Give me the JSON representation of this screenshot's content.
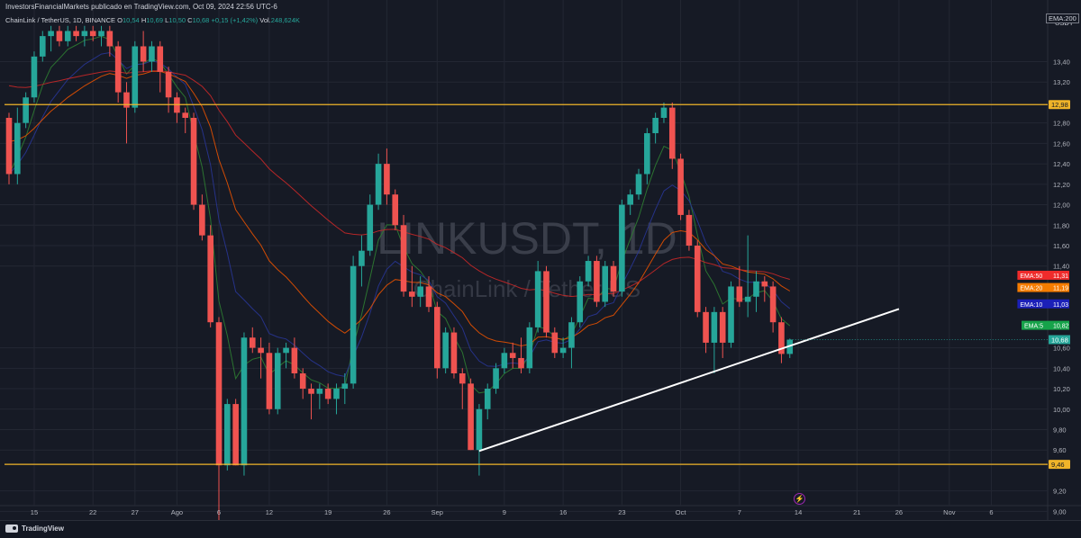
{
  "header": {
    "publish_line": "InvestorsFinancialMarkets publicado en TradingView.com, Oct 09, 2024 22:56 UTC-6",
    "symbol_desc": "ChainLink / TetherUS, 1D, BINANCE",
    "o_label": "O",
    "o_value": "10,54",
    "h_label": "H",
    "h_value": "10,69",
    "l_label": "L",
    "l_value": "10,50",
    "c_label": "C",
    "c_value": "10,68",
    "change": "+0,15 (+1,42%)",
    "vol_label": "Vol.",
    "vol_value": "248,624K",
    "ema_top_label": "EMA:200"
  },
  "watermark": {
    "symbol": "LINKUSDT, 1D",
    "name": "ChainLink / Tether US"
  },
  "footer": {
    "brand": "TradingView"
  },
  "chart_data": {
    "type": "candlestick",
    "currency_label": "USDT",
    "ylim": [
      8.85,
      13.7
    ],
    "y_ticks": [
      {
        "v": 9.0,
        "label": "9,00"
      },
      {
        "v": 9.2,
        "label": "9,20"
      },
      {
        "v": 9.6,
        "label": "9,60"
      },
      {
        "v": 9.8,
        "label": "9,80"
      },
      {
        "v": 10.0,
        "label": "10,00"
      },
      {
        "v": 10.2,
        "label": "10,20"
      },
      {
        "v": 10.4,
        "label": "10,40"
      },
      {
        "v": 10.6,
        "label": "10,60"
      },
      {
        "v": 11.4,
        "label": "11,40"
      },
      {
        "v": 11.6,
        "label": "11,60"
      },
      {
        "v": 11.8,
        "label": "11,80"
      },
      {
        "v": 12.0,
        "label": "12,00"
      },
      {
        "v": 12.2,
        "label": "12,20"
      },
      {
        "v": 12.4,
        "label": "12,40"
      },
      {
        "v": 12.6,
        "label": "12,60"
      },
      {
        "v": 12.8,
        "label": "12,80"
      },
      {
        "v": 13.2,
        "label": "13,20"
      },
      {
        "v": 13.4,
        "label": "13,40"
      }
    ],
    "x_ticks": [
      {
        "i": 3,
        "label": "15"
      },
      {
        "i": 10,
        "label": "22"
      },
      {
        "i": 15,
        "label": "27"
      },
      {
        "i": 20,
        "label": "Ago"
      },
      {
        "i": 25,
        "label": "6"
      },
      {
        "i": 31,
        "label": "12"
      },
      {
        "i": 38,
        "label": "19"
      },
      {
        "i": 45,
        "label": "26"
      },
      {
        "i": 51,
        "label": "Sep"
      },
      {
        "i": 59,
        "label": "9"
      },
      {
        "i": 66,
        "label": "16"
      },
      {
        "i": 73,
        "label": "23"
      },
      {
        "i": 80,
        "label": "Oct"
      },
      {
        "i": 87,
        "label": "7"
      },
      {
        "i": 94,
        "label": "14"
      },
      {
        "i": 101,
        "label": "21"
      },
      {
        "i": 106,
        "label": "26"
      },
      {
        "i": 112,
        "label": "Nov"
      },
      {
        "i": 117,
        "label": "6"
      }
    ],
    "candles": [
      {
        "o": 12.85,
        "h": 12.9,
        "l": 12.2,
        "c": 12.3
      },
      {
        "o": 12.3,
        "h": 12.95,
        "l": 12.2,
        "c": 12.8
      },
      {
        "o": 12.8,
        "h": 13.1,
        "l": 12.75,
        "c": 13.05
      },
      {
        "o": 13.05,
        "h": 13.5,
        "l": 13.0,
        "c": 13.45
      },
      {
        "o": 13.45,
        "h": 13.7,
        "l": 13.4,
        "c": 13.65
      },
      {
        "o": 13.65,
        "h": 13.75,
        "l": 13.5,
        "c": 13.7
      },
      {
        "o": 13.7,
        "h": 13.75,
        "l": 13.55,
        "c": 13.6
      },
      {
        "o": 13.6,
        "h": 13.75,
        "l": 13.55,
        "c": 13.7
      },
      {
        "o": 13.7,
        "h": 13.75,
        "l": 13.6,
        "c": 13.65
      },
      {
        "o": 13.65,
        "h": 13.75,
        "l": 13.55,
        "c": 13.7
      },
      {
        "o": 13.7,
        "h": 13.75,
        "l": 13.6,
        "c": 13.65
      },
      {
        "o": 13.65,
        "h": 13.75,
        "l": 13.55,
        "c": 13.7
      },
      {
        "o": 13.7,
        "h": 13.75,
        "l": 13.45,
        "c": 13.55
      },
      {
        "o": 13.55,
        "h": 13.6,
        "l": 13.0,
        "c": 13.1
      },
      {
        "o": 13.1,
        "h": 13.2,
        "l": 12.6,
        "c": 12.95
      },
      {
        "o": 12.95,
        "h": 13.6,
        "l": 12.9,
        "c": 13.55
      },
      {
        "o": 13.55,
        "h": 13.7,
        "l": 13.3,
        "c": 13.4
      },
      {
        "o": 13.4,
        "h": 13.6,
        "l": 13.3,
        "c": 13.55
      },
      {
        "o": 13.55,
        "h": 13.6,
        "l": 13.1,
        "c": 13.3
      },
      {
        "o": 13.3,
        "h": 13.35,
        "l": 12.9,
        "c": 13.05
      },
      {
        "o": 13.05,
        "h": 13.1,
        "l": 12.8,
        "c": 12.9
      },
      {
        "o": 12.9,
        "h": 12.95,
        "l": 12.7,
        "c": 12.85
      },
      {
        "o": 12.85,
        "h": 12.9,
        "l": 11.95,
        "c": 12.0
      },
      {
        "o": 12.0,
        "h": 12.1,
        "l": 11.65,
        "c": 11.7
      },
      {
        "o": 11.7,
        "h": 11.8,
        "l": 10.8,
        "c": 10.85
      },
      {
        "o": 10.85,
        "h": 10.9,
        "l": 8.85,
        "c": 9.45
      },
      {
        "o": 9.45,
        "h": 10.1,
        "l": 9.4,
        "c": 10.05
      },
      {
        "o": 10.05,
        "h": 10.1,
        "l": 9.45,
        "c": 9.45
      },
      {
        "o": 9.45,
        "h": 10.75,
        "l": 9.35,
        "c": 10.7
      },
      {
        "o": 10.7,
        "h": 10.8,
        "l": 10.55,
        "c": 10.6
      },
      {
        "o": 10.6,
        "h": 10.7,
        "l": 10.3,
        "c": 10.55
      },
      {
        "o": 10.55,
        "h": 10.65,
        "l": 9.95,
        "c": 10.0
      },
      {
        "o": 10.0,
        "h": 10.6,
        "l": 9.95,
        "c": 10.55
      },
      {
        "o": 10.55,
        "h": 10.65,
        "l": 10.4,
        "c": 10.6
      },
      {
        "o": 10.6,
        "h": 10.7,
        "l": 10.3,
        "c": 10.35
      },
      {
        "o": 10.35,
        "h": 10.4,
        "l": 10.1,
        "c": 10.2
      },
      {
        "o": 10.2,
        "h": 10.25,
        "l": 9.9,
        "c": 10.15
      },
      {
        "o": 10.15,
        "h": 10.25,
        "l": 10.0,
        "c": 10.2
      },
      {
        "o": 10.2,
        "h": 10.25,
        "l": 10.05,
        "c": 10.1
      },
      {
        "o": 10.1,
        "h": 10.25,
        "l": 9.95,
        "c": 10.2
      },
      {
        "o": 10.2,
        "h": 10.35,
        "l": 10.05,
        "c": 10.25
      },
      {
        "o": 10.25,
        "h": 11.5,
        "l": 10.2,
        "c": 11.4
      },
      {
        "o": 11.4,
        "h": 11.7,
        "l": 11.2,
        "c": 11.55
      },
      {
        "o": 11.55,
        "h": 12.1,
        "l": 11.5,
        "c": 12.0
      },
      {
        "o": 12.0,
        "h": 12.5,
        "l": 11.95,
        "c": 12.4
      },
      {
        "o": 12.4,
        "h": 12.55,
        "l": 12.0,
        "c": 12.1
      },
      {
        "o": 12.1,
        "h": 12.15,
        "l": 11.75,
        "c": 11.8
      },
      {
        "o": 11.8,
        "h": 11.9,
        "l": 11.1,
        "c": 11.15
      },
      {
        "o": 11.15,
        "h": 11.4,
        "l": 11.0,
        "c": 11.1
      },
      {
        "o": 11.1,
        "h": 11.3,
        "l": 11.0,
        "c": 11.2
      },
      {
        "o": 11.2,
        "h": 11.3,
        "l": 10.95,
        "c": 11.0
      },
      {
        "o": 11.0,
        "h": 11.05,
        "l": 10.3,
        "c": 10.4
      },
      {
        "o": 10.4,
        "h": 10.8,
        "l": 10.35,
        "c": 10.75
      },
      {
        "o": 10.75,
        "h": 10.8,
        "l": 10.3,
        "c": 10.35
      },
      {
        "o": 10.35,
        "h": 10.4,
        "l": 10.0,
        "c": 10.25
      },
      {
        "o": 10.25,
        "h": 10.3,
        "l": 9.6,
        "c": 9.6
      },
      {
        "o": 9.6,
        "h": 10.05,
        "l": 9.35,
        "c": 10.0
      },
      {
        "o": 10.0,
        "h": 10.25,
        "l": 9.9,
        "c": 10.2
      },
      {
        "o": 10.2,
        "h": 10.45,
        "l": 10.15,
        "c": 10.4
      },
      {
        "o": 10.4,
        "h": 10.6,
        "l": 10.35,
        "c": 10.55
      },
      {
        "o": 10.55,
        "h": 10.65,
        "l": 10.4,
        "c": 10.5
      },
      {
        "o": 10.5,
        "h": 10.7,
        "l": 10.35,
        "c": 10.4
      },
      {
        "o": 10.4,
        "h": 10.85,
        "l": 10.35,
        "c": 10.8
      },
      {
        "o": 10.8,
        "h": 11.45,
        "l": 10.75,
        "c": 11.35
      },
      {
        "o": 11.35,
        "h": 11.4,
        "l": 10.7,
        "c": 10.75
      },
      {
        "o": 10.75,
        "h": 10.8,
        "l": 10.5,
        "c": 10.55
      },
      {
        "o": 10.55,
        "h": 10.7,
        "l": 10.5,
        "c": 10.6
      },
      {
        "o": 10.6,
        "h": 10.9,
        "l": 10.4,
        "c": 10.85
      },
      {
        "o": 10.85,
        "h": 11.3,
        "l": 10.8,
        "c": 11.25
      },
      {
        "o": 11.25,
        "h": 11.5,
        "l": 11.2,
        "c": 11.45
      },
      {
        "o": 11.45,
        "h": 11.5,
        "l": 11.0,
        "c": 11.05
      },
      {
        "o": 11.05,
        "h": 11.45,
        "l": 11.0,
        "c": 11.4
      },
      {
        "o": 11.4,
        "h": 11.45,
        "l": 11.1,
        "c": 11.15
      },
      {
        "o": 11.15,
        "h": 12.05,
        "l": 11.1,
        "c": 12.0
      },
      {
        "o": 12.0,
        "h": 12.15,
        "l": 11.9,
        "c": 12.1
      },
      {
        "o": 12.1,
        "h": 12.35,
        "l": 12.05,
        "c": 12.3
      },
      {
        "o": 12.3,
        "h": 12.75,
        "l": 12.2,
        "c": 12.7
      },
      {
        "o": 12.7,
        "h": 12.9,
        "l": 12.6,
        "c": 12.85
      },
      {
        "o": 12.85,
        "h": 13.0,
        "l": 12.8,
        "c": 12.95
      },
      {
        "o": 12.95,
        "h": 13.0,
        "l": 12.35,
        "c": 12.45
      },
      {
        "o": 12.45,
        "h": 12.5,
        "l": 11.85,
        "c": 11.9
      },
      {
        "o": 11.9,
        "h": 11.95,
        "l": 11.55,
        "c": 11.6
      },
      {
        "o": 11.6,
        "h": 11.65,
        "l": 10.9,
        "c": 10.95
      },
      {
        "o": 10.95,
        "h": 11.0,
        "l": 10.55,
        "c": 10.65
      },
      {
        "o": 10.65,
        "h": 11.0,
        "l": 10.35,
        "c": 10.95
      },
      {
        "o": 10.95,
        "h": 11.0,
        "l": 10.5,
        "c": 10.65
      },
      {
        "o": 10.65,
        "h": 11.25,
        "l": 10.6,
        "c": 11.2
      },
      {
        "o": 11.2,
        "h": 11.4,
        "l": 11.0,
        "c": 11.05
      },
      {
        "o": 11.05,
        "h": 11.7,
        "l": 10.9,
        "c": 11.1
      },
      {
        "o": 11.1,
        "h": 11.35,
        "l": 10.95,
        "c": 11.25
      },
      {
        "o": 11.25,
        "h": 11.3,
        "l": 11.05,
        "c": 11.2
      },
      {
        "o": 11.2,
        "h": 11.25,
        "l": 10.75,
        "c": 10.85
      },
      {
        "o": 10.85,
        "h": 10.9,
        "l": 10.45,
        "c": 10.54
      },
      {
        "o": 10.54,
        "h": 10.69,
        "l": 10.5,
        "c": 10.68
      }
    ],
    "overlays": [
      {
        "type": "hline",
        "value": 12.98,
        "label": "12,98",
        "color": "#f0b429"
      },
      {
        "type": "hline",
        "value": 9.46,
        "label": "9,46",
        "color": "#f0b429"
      },
      {
        "type": "trendline",
        "from": {
          "i": 56,
          "v": 9.59
        },
        "to": {
          "i": 106,
          "v": 10.98
        },
        "color": "#ffffff"
      }
    ],
    "ema_tags": [
      {
        "label": "EMA:50",
        "value": "11,31",
        "v": 11.31,
        "color": "#ef2b2b"
      },
      {
        "label": "EMA:20",
        "value": "11,19",
        "v": 11.19,
        "color": "#f57c00"
      },
      {
        "label": "EMA:10",
        "value": "11,03",
        "v": 11.03,
        "color": "#1b20b8"
      },
      {
        "label": "EMA:5",
        "value": "10,82",
        "v": 10.82,
        "color": "#16a34a"
      }
    ],
    "last_price": {
      "value": "10,68",
      "v": 10.68,
      "color": "#26a69a"
    },
    "colors": {
      "up": "#26a69a",
      "down": "#ef5350",
      "ema5": "#2e7d32",
      "ema10": "#283593",
      "ema20": "#e65100",
      "ema50": "#c62828",
      "grid": "#232733",
      "axis_text": "#b2b5be"
    },
    "grid": true
  }
}
